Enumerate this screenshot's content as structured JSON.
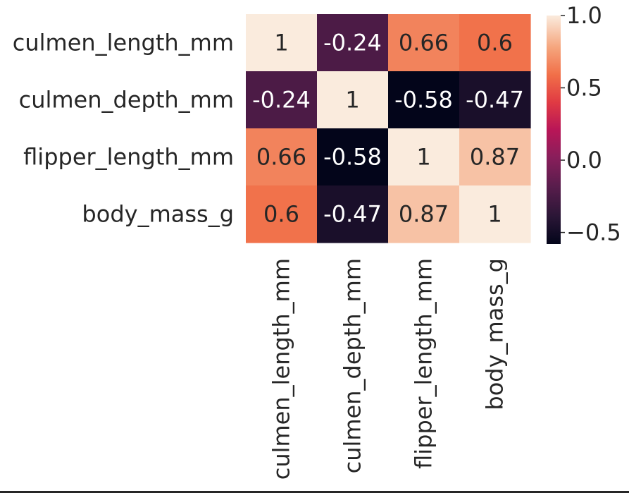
{
  "chart_data": {
    "type": "heatmap",
    "rows": [
      "culmen_length_mm",
      "culmen_depth_mm",
      "flipper_length_mm",
      "body_mass_g"
    ],
    "columns": [
      "culmen_length_mm",
      "culmen_depth_mm",
      "flipper_length_mm",
      "body_mass_g"
    ],
    "values": [
      [
        1,
        -0.24,
        0.66,
        0.6
      ],
      [
        -0.24,
        1,
        -0.58,
        -0.47
      ],
      [
        0.66,
        -0.58,
        1,
        0.87
      ],
      [
        0.6,
        -0.47,
        0.87,
        1
      ]
    ],
    "cell_labels": [
      [
        "1",
        "-0.24",
        "0.66",
        "0.6"
      ],
      [
        "-0.24",
        "1",
        "-0.58",
        "-0.47"
      ],
      [
        "0.66",
        "-0.58",
        "1",
        "0.87"
      ],
      [
        "0.6",
        "-0.47",
        "0.87",
        "1"
      ]
    ],
    "colormap": "rocket",
    "colorbar": {
      "range": [
        -0.58,
        1
      ],
      "ticks": [
        1.0,
        0.5,
        0.0,
        -0.5
      ],
      "tick_labels": [
        "1.0",
        "0.5",
        "0.0",
        "−0.5"
      ]
    },
    "colors": {
      "text_light": "#ffffff",
      "text_dark": "#262626",
      "axis_text": "#262626"
    }
  }
}
